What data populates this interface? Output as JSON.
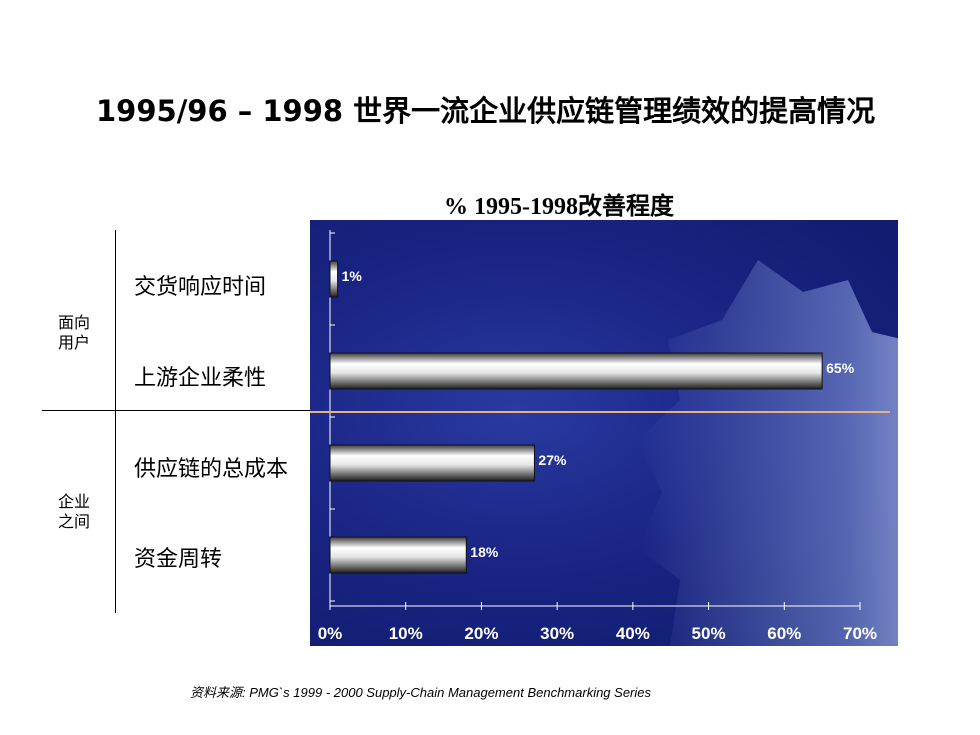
{
  "title": "1995/96 – 1998 世界一流企业供应链管理绩效的提高情况",
  "chart_data": {
    "type": "bar",
    "orientation": "horizontal",
    "title": "% 1995-1998改善程度",
    "categories": [
      "交货响应时间",
      "上游企业柔性",
      "供应链的总成本",
      "资金周转"
    ],
    "values": [
      1,
      65,
      27,
      18
    ],
    "value_labels": [
      "1%",
      "65%",
      "27%",
      "18%"
    ],
    "groups": [
      {
        "label": "面向\n用户",
        "categories": [
          "交货响应时间",
          "上游企业柔性"
        ]
      },
      {
        "label": "企业\n之间",
        "categories": [
          "供应链的总成本",
          "资金周转"
        ]
      }
    ],
    "x_ticks": [
      "0%",
      "10%",
      "20%",
      "30%",
      "40%",
      "50%",
      "60%",
      "70%"
    ],
    "xlim": [
      0,
      70
    ],
    "grid": false,
    "colors": {
      "background": "#1a2585",
      "bar_light": "#ffffff",
      "bar_dark": "#2a2a2a",
      "divider": "#e8b080",
      "text": "#ffffff"
    }
  },
  "source": {
    "label": "资料来源",
    "text": ": PMG`s 1999 - 2000 Supply-Chain Management Benchmarking Series"
  }
}
